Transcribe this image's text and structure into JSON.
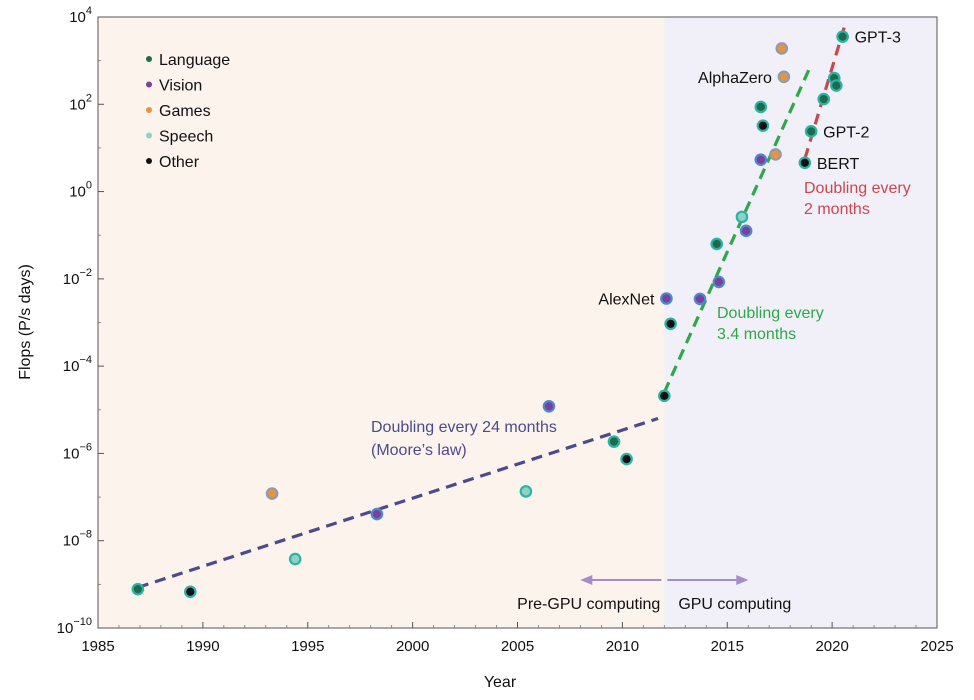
{
  "chart_data": {
    "type": "scatter",
    "title": "",
    "xlabel": "Year",
    "ylabel": "Flops (P/s days)",
    "xlim": [
      1985,
      2025
    ],
    "ylim_log10": [
      -10,
      4
    ],
    "y_scale": "log",
    "x_ticks": [
      1985,
      1990,
      1995,
      2000,
      2005,
      2010,
      2015,
      2020,
      2025
    ],
    "y_ticks": [
      {
        "base": "10",
        "exp": "4",
        "value_log10": 4
      },
      {
        "base": "10",
        "exp": "2",
        "value_log10": 2
      },
      {
        "base": "10",
        "exp": "0",
        "value_log10": 0
      },
      {
        "base": "10",
        "exp": "−2",
        "value_log10": -2
      },
      {
        "base": "10",
        "exp": "−4",
        "value_log10": -4
      },
      {
        "base": "10",
        "exp": "−6",
        "value_log10": -6
      },
      {
        "base": "10",
        "exp": "−8",
        "value_log10": -8
      },
      {
        "base": "10",
        "exp": "−10",
        "value_log10": -10
      }
    ],
    "regions": [
      {
        "name": "Pre-GPU computing",
        "x_range": [
          1985,
          2012
        ],
        "color": "#fcf3ec"
      },
      {
        "name": "GPU computing",
        "x_range": [
          2012,
          2025
        ],
        "color": "#f1eff7"
      }
    ],
    "legend": {
      "placement": "top-left",
      "entries": [
        {
          "name": "Language",
          "color": "#1e6b4b"
        },
        {
          "name": "Vision",
          "color": "#7b3f9e"
        },
        {
          "name": "Games",
          "color": "#e8943a"
        },
        {
          "name": "Speech",
          "color": "#8fd2c4"
        },
        {
          "name": "Other",
          "color": "#111111"
        }
      ]
    },
    "point_outline_colors": {
      "Language": "#2bb3a8",
      "Vision": "#4e89cc",
      "Games": "#8b9bb8",
      "Speech": "#2bb3a8",
      "Other": "#2bb3a8"
    },
    "points": [
      {
        "x": 1986.9,
        "y_log10": -9.11,
        "category": "Language"
      },
      {
        "x": 1989.4,
        "y_log10": -9.17,
        "category": "Other"
      },
      {
        "x": 1993.3,
        "y_log10": -6.92,
        "category": "Games"
      },
      {
        "x": 1994.4,
        "y_log10": -8.42,
        "category": "Speech"
      },
      {
        "x": 1998.3,
        "y_log10": -7.39,
        "category": "Vision"
      },
      {
        "x": 2005.4,
        "y_log10": -6.87,
        "category": "Speech"
      },
      {
        "x": 2006.5,
        "y_log10": -4.92,
        "category": "Vision"
      },
      {
        "x": 2009.6,
        "y_log10": -5.73,
        "category": "Language"
      },
      {
        "x": 2010.2,
        "y_log10": -6.13,
        "category": "Other"
      },
      {
        "x": 2012.0,
        "y_log10": -4.68,
        "category": "Other"
      },
      {
        "x": 2012.1,
        "y_log10": -2.45,
        "category": "Vision"
      },
      {
        "x": 2012.3,
        "y_log10": -3.03,
        "category": "Other"
      },
      {
        "x": 2013.7,
        "y_log10": -2.46,
        "category": "Vision"
      },
      {
        "x": 2014.5,
        "y_log10": -1.2,
        "category": "Language"
      },
      {
        "x": 2014.6,
        "y_log10": -2.07,
        "category": "Vision"
      },
      {
        "x": 2015.7,
        "y_log10": -0.58,
        "category": "Speech"
      },
      {
        "x": 2015.9,
        "y_log10": -0.9,
        "category": "Vision"
      },
      {
        "x": 2016.6,
        "y_log10": 0.73,
        "category": "Vision"
      },
      {
        "x": 2016.6,
        "y_log10": 1.94,
        "category": "Language"
      },
      {
        "x": 2016.7,
        "y_log10": 1.51,
        "category": "Other"
      },
      {
        "x": 2017.3,
        "y_log10": 0.85,
        "category": "Games"
      },
      {
        "x": 2017.6,
        "y_log10": 3.28,
        "category": "Games"
      },
      {
        "x": 2017.7,
        "y_log10": 2.63,
        "category": "Games"
      },
      {
        "x": 2018.7,
        "y_log10": 0.66,
        "category": "Other"
      },
      {
        "x": 2019.0,
        "y_log10": 1.38,
        "category": "Language"
      },
      {
        "x": 2019.6,
        "y_log10": 2.12,
        "category": "Language"
      },
      {
        "x": 2020.1,
        "y_log10": 2.6,
        "category": "Language"
      },
      {
        "x": 2020.2,
        "y_log10": 2.43,
        "category": "Language"
      },
      {
        "x": 2020.5,
        "y_log10": 3.55,
        "category": "Language"
      }
    ],
    "trend_lines": [
      {
        "label": "Doubling every 24 months",
        "label_line2": "(Moore’s law)",
        "color": "#4a4b8f",
        "x": [
          1986.9,
          2011.7
        ],
        "y_log10": [
          -9.07,
          -5.2
        ]
      },
      {
        "label": "Doubling every",
        "label_line2": "3.4 months",
        "color": "#2ea84a",
        "x": [
          2012.0,
          2018.9
        ],
        "y_log10": [
          -4.6,
          2.8
        ]
      },
      {
        "label": "Doubling every",
        "label_line2": "2 months",
        "color": "#c8484e",
        "x": [
          2018.7,
          2020.6
        ],
        "y_log10": [
          0.75,
          3.8
        ]
      }
    ],
    "point_labels": [
      {
        "text": "AlexNet",
        "x": 2012.1,
        "y_log10": -2.45,
        "anchor": "end"
      },
      {
        "text": "AlphaZero",
        "x": 2017.7,
        "y_log10": 2.63,
        "anchor": "end"
      },
      {
        "text": "GPT-3",
        "x": 2020.5,
        "y_log10": 3.55,
        "anchor": "start"
      },
      {
        "text": "GPT-2",
        "x": 2019.0,
        "y_log10": 1.38,
        "anchor": "start"
      },
      {
        "text": "BERT",
        "x": 2018.7,
        "y_log10": 0.66,
        "anchor": "start"
      }
    ],
    "region_arrows": [
      {
        "label": "Pre-GPU computing",
        "direction": "left",
        "color": "#a68bc9"
      },
      {
        "label": "GPU computing",
        "direction": "right",
        "color": "#a68bc9"
      }
    ]
  }
}
